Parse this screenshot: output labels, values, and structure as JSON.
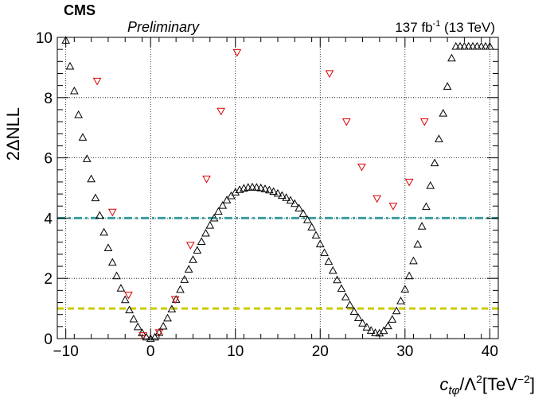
{
  "header": {
    "experiment": "CMS",
    "status": "Preliminary",
    "lumi_value": "137 fb",
    "lumi_exp": "-1",
    "lumi_energy": " (13 TeV)"
  },
  "axes": {
    "x_label_c": "c",
    "x_label_sub": "tφ",
    "x_label_rest": "/Λ",
    "x_label_sq": "2",
    "x_label_unit": "[TeV",
    "x_label_unit_exp": "−2",
    "x_label_close": "]",
    "y_label": "2ΔNLL"
  },
  "chart_data": {
    "type": "scatter",
    "title": "",
    "xlabel": "c_tφ/Λ^2 [TeV^-2]",
    "ylabel": "2ΔNLL",
    "xlim": [
      -11,
      41
    ],
    "ylim": [
      0,
      10
    ],
    "x_ticks": [
      -10,
      0,
      10,
      20,
      30,
      40
    ],
    "x_tick_labels": [
      "−10",
      "0",
      "10",
      "20",
      "30",
      "40"
    ],
    "y_ticks": [
      0,
      2,
      4,
      6,
      8,
      10
    ],
    "y_tick_labels": [
      "0",
      "2",
      "4",
      "6",
      "8",
      "10"
    ],
    "grid": true,
    "reference_lines": [
      {
        "y": 4,
        "color": "#3a9e9e",
        "style": "dash-dot"
      },
      {
        "y": 1,
        "color": "#cccc00",
        "style": "dashed"
      }
    ],
    "series": [
      {
        "marker": "triangle-up-open",
        "color": "#000000",
        "x": [
          -10.0,
          -9.5,
          -9.0,
          -8.5,
          -8.0,
          -7.5,
          -7.0,
          -6.5,
          -6.0,
          -5.5,
          -5.0,
          -4.5,
          -4.0,
          -3.5,
          -3.0,
          -2.5,
          -2.0,
          -1.5,
          -1.0,
          -0.5,
          0.0,
          0.5,
          1.0,
          1.5,
          2.0,
          2.5,
          3.0,
          3.5,
          4.0,
          4.5,
          5.0,
          5.5,
          6.0,
          6.5,
          7.0,
          7.5,
          8.0,
          8.5,
          9.0,
          9.5,
          10.0,
          10.5,
          11.0,
          11.5,
          12.0,
          12.5,
          13.0,
          13.5,
          14.0,
          14.5,
          15.0,
          15.5,
          16.0,
          16.5,
          17.0,
          17.5,
          18.0,
          18.5,
          19.0,
          19.5,
          20.0,
          20.5,
          21.0,
          21.5,
          22.0,
          22.5,
          23.0,
          23.5,
          24.0,
          24.5,
          25.0,
          25.5,
          26.0,
          26.5,
          27.0,
          27.5,
          28.0,
          28.5,
          29.0,
          29.5,
          30.0,
          30.5,
          31.0,
          31.5,
          32.0,
          32.5,
          33.0,
          33.5,
          34.0,
          34.5,
          35.0,
          35.5,
          36.0,
          36.5,
          37.0,
          37.5,
          38.0,
          38.5,
          39.0,
          39.5,
          40.0
        ],
        "y": [
          9.9,
          9.04,
          8.22,
          7.43,
          6.68,
          5.97,
          5.3,
          4.67,
          4.09,
          3.53,
          3.01,
          2.53,
          2.08,
          1.67,
          1.29,
          0.95,
          0.65,
          0.39,
          0.19,
          0.05,
          0.0,
          0.05,
          0.2,
          0.41,
          0.68,
          0.98,
          1.3,
          1.63,
          1.96,
          2.3,
          2.62,
          2.93,
          3.22,
          3.5,
          3.76,
          4.0,
          4.22,
          4.42,
          4.6,
          4.74,
          4.86,
          4.94,
          4.99,
          5.02,
          5.03,
          5.02,
          5.0,
          4.97,
          4.93,
          4.88,
          4.82,
          4.75,
          4.68,
          4.59,
          4.48,
          4.33,
          4.15,
          3.94,
          3.7,
          3.43,
          3.14,
          2.85,
          2.56,
          2.26,
          1.95,
          1.66,
          1.38,
          1.12,
          0.9,
          0.69,
          0.51,
          0.38,
          0.27,
          0.19,
          0.18,
          0.26,
          0.42,
          0.64,
          0.92,
          1.25,
          1.64,
          2.08,
          2.58,
          3.13,
          3.73,
          4.38,
          5.08,
          5.83,
          6.63,
          7.48,
          8.37,
          9.31,
          9.7,
          9.7,
          9.7,
          9.7,
          9.7,
          9.7,
          9.7,
          9.7,
          9.7
        ]
      },
      {
        "marker": "triangle-down-open",
        "color": "#dd0000",
        "x": [
          -6.3,
          -4.5,
          -2.6,
          -0.9,
          1.0,
          2.9,
          4.7,
          6.6,
          8.3,
          10.2,
          21.1,
          23.1,
          24.9,
          26.7,
          28.6,
          30.5,
          32.3
        ],
        "y": [
          8.55,
          4.2,
          1.45,
          0.1,
          0.2,
          1.3,
          3.1,
          5.3,
          7.55,
          9.5,
          8.8,
          7.2,
          5.7,
          4.65,
          4.4,
          5.2,
          7.2
        ]
      }
    ]
  }
}
